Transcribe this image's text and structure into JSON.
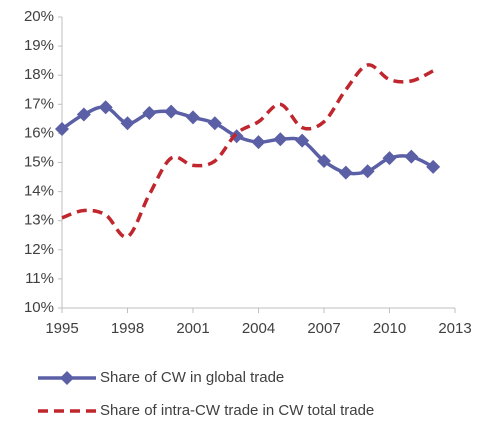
{
  "chart_data": {
    "type": "line",
    "x": [
      1995,
      1996,
      1997,
      1998,
      1999,
      2000,
      2001,
      2002,
      2003,
      2004,
      2005,
      2006,
      2007,
      2008,
      2009,
      2010,
      2011,
      2012
    ],
    "series": [
      {
        "name": "Share of CW in global trade",
        "color": "#5b60a6",
        "dash": false,
        "marker": "diamond",
        "values": [
          16.15,
          16.65,
          16.9,
          16.35,
          16.7,
          16.75,
          16.55,
          16.35,
          15.9,
          15.7,
          15.8,
          15.75,
          15.05,
          14.65,
          14.7,
          15.15,
          15.2,
          14.85
        ]
      },
      {
        "name": "Share of intra-CW trade in CW total trade",
        "color": "#c0262d",
        "dash": true,
        "marker": "none",
        "values": [
          13.1,
          13.35,
          13.2,
          12.45,
          13.9,
          15.15,
          14.9,
          15.05,
          16.0,
          16.4,
          17.0,
          16.2,
          16.4,
          17.5,
          18.35,
          17.85,
          17.8,
          18.15
        ]
      }
    ],
    "xlim": [
      1995,
      2013
    ],
    "xticks": [
      1995,
      1998,
      2001,
      2004,
      2007,
      2010,
      2013
    ],
    "ylim": [
      10,
      20
    ],
    "yticks": [
      {
        "value": 10,
        "label": "10%"
      },
      {
        "value": 11,
        "label": "11%"
      },
      {
        "value": 12,
        "label": "12%"
      },
      {
        "value": 13,
        "label": "13%"
      },
      {
        "value": 14,
        "label": "14%"
      },
      {
        "value": 15,
        "label": "15%"
      },
      {
        "value": 16,
        "label": "16%"
      },
      {
        "value": 17,
        "label": "17%"
      },
      {
        "value": 18,
        "label": "18%"
      },
      {
        "value": 19,
        "label": "19%"
      },
      {
        "value": 20,
        "label": "20%"
      }
    ],
    "grid": false,
    "legend": "bottom"
  }
}
